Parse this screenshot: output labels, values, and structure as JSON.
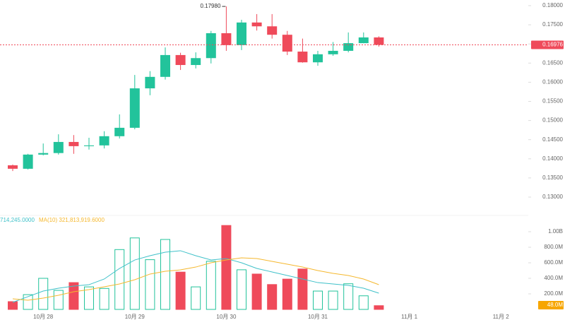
{
  "chart_data": {
    "type": "candlestick",
    "categories": [
      null,
      null,
      "10月 28",
      null,
      null,
      null,
      null,
      null,
      "10月 29",
      null,
      null,
      null,
      null,
      null,
      "10月 30",
      null,
      null,
      null,
      null,
      null,
      "10月 31",
      null,
      null,
      null,
      null,
      null,
      "11月 1",
      null,
      null,
      null,
      null,
      null,
      "11月 2"
    ],
    "open": [
      0.1383,
      0.1374,
      0.1411,
      0.1415,
      0.1444,
      0.1433,
      0.1435,
      0.1459,
      0.1481,
      0.1584,
      0.1614,
      0.1671,
      0.1645,
      0.1663,
      0.1728,
      0.1697,
      0.1756,
      0.1746,
      0.1724,
      0.168,
      0.1652,
      0.1673,
      0.1682,
      0.1702,
      0.1717,
      null,
      null,
      null,
      null,
      null,
      null,
      null,
      null
    ],
    "high": [
      0.1385,
      0.1413,
      0.144,
      0.1464,
      0.1462,
      0.1455,
      0.1472,
      0.1516,
      0.1619,
      0.1629,
      0.1691,
      0.1677,
      0.1678,
      0.1734,
      0.1798,
      0.1763,
      0.1778,
      0.1778,
      0.1734,
      0.1714,
      0.1682,
      0.1705,
      0.173,
      0.173,
      0.172,
      null,
      null,
      null,
      null,
      null,
      null,
      null,
      null
    ],
    "low": [
      0.1368,
      0.1372,
      0.1409,
      0.1411,
      0.1413,
      0.1424,
      0.1427,
      0.1453,
      0.1477,
      0.1566,
      0.1607,
      0.1632,
      0.1636,
      0.1649,
      0.1682,
      0.1684,
      0.1735,
      0.1714,
      0.1671,
      0.1651,
      0.1643,
      0.1669,
      0.1678,
      0.1702,
      0.1693,
      null,
      null,
      null,
      null,
      null,
      null,
      null,
      null
    ],
    "close": [
      0.1374,
      0.1411,
      0.1415,
      0.1444,
      0.1433,
      0.1435,
      0.1459,
      0.1481,
      0.1584,
      0.1614,
      0.1671,
      0.1645,
      0.1663,
      0.1728,
      0.1697,
      0.1756,
      0.1746,
      0.1724,
      0.168,
      0.1652,
      0.1673,
      0.1682,
      0.1702,
      0.1717,
      0.16976,
      null,
      null,
      null,
      null,
      null,
      null,
      null,
      null
    ],
    "up_color": "#22c39b",
    "down_color": "#ef4a5a",
    "ylim": [
      0.1285,
      0.1815
    ],
    "yticks": [
      {
        "value": 0.18,
        "label": "0.18000"
      },
      {
        "value": 0.175,
        "label": "0.17500"
      },
      {
        "value": 0.17,
        "label": "0.17000"
      },
      {
        "value": 0.165,
        "label": "0.16500"
      },
      {
        "value": 0.16,
        "label": "0.16000"
      },
      {
        "value": 0.155,
        "label": "0.15500"
      },
      {
        "value": 0.15,
        "label": "0.15000"
      },
      {
        "value": 0.145,
        "label": "0.14500"
      },
      {
        "value": 0.14,
        "label": "0.14000"
      },
      {
        "value": 0.135,
        "label": "0.13500"
      },
      {
        "value": 0.13,
        "label": "0.13000"
      }
    ],
    "high_annotation": {
      "value": 0.1798,
      "label": "0.17980"
    },
    "last_price": 0.16976,
    "volume": {
      "values": [
        100000000,
        190000000,
        400000000,
        245000000,
        345000000,
        290000000,
        270000000,
        770000000,
        920000000,
        640000000,
        900000000,
        480000000,
        290000000,
        620000000,
        1080000000,
        510000000,
        455000000,
        320000000,
        390000000,
        520000000,
        236000000,
        236000000,
        330000000,
        175000000,
        48000000,
        null,
        null,
        null,
        null,
        null,
        null,
        null,
        null
      ],
      "ylim": [
        0,
        1130000000
      ],
      "yticks": [
        {
          "value": 1000000000,
          "label": "1.00B"
        },
        {
          "value": 800000000,
          "label": "800.0M"
        },
        {
          "value": 600000000,
          "label": "600.0M"
        },
        {
          "value": 400000000,
          "label": "400.0M"
        },
        {
          "value": 200000000,
          "label": "200.0M"
        }
      ],
      "last_value": {
        "value": 48000000,
        "label": "48.0M"
      },
      "series": [
        {
          "name": "714,245.0000",
          "color": "#3fc1c9",
          "values": [
            91000000,
            164000000,
            236000000,
            273000000,
            300000000,
            318000000,
            391000000,
            527000000,
            636000000,
            691000000,
            736000000,
            755000000,
            691000000,
            636000000,
            655000000,
            600000000,
            527000000,
            482000000,
            436000000,
            391000000,
            345000000,
            327000000,
            309000000,
            273000000,
            209000000,
            null,
            null,
            null,
            null,
            null,
            null,
            null,
            null
          ]
        },
        {
          "name": "MA(10) 321,813,919.6000",
          "color": "#f5b82e",
          "values": [
            136000000,
            118000000,
            145000000,
            182000000,
            227000000,
            255000000,
            291000000,
            327000000,
            382000000,
            455000000,
            491000000,
            509000000,
            545000000,
            600000000,
            636000000,
            664000000,
            655000000,
            618000000,
            582000000,
            545000000,
            500000000,
            464000000,
            436000000,
            391000000,
            318000000,
            null,
            null,
            null,
            null,
            null,
            null,
            null,
            null
          ]
        }
      ]
    }
  }
}
